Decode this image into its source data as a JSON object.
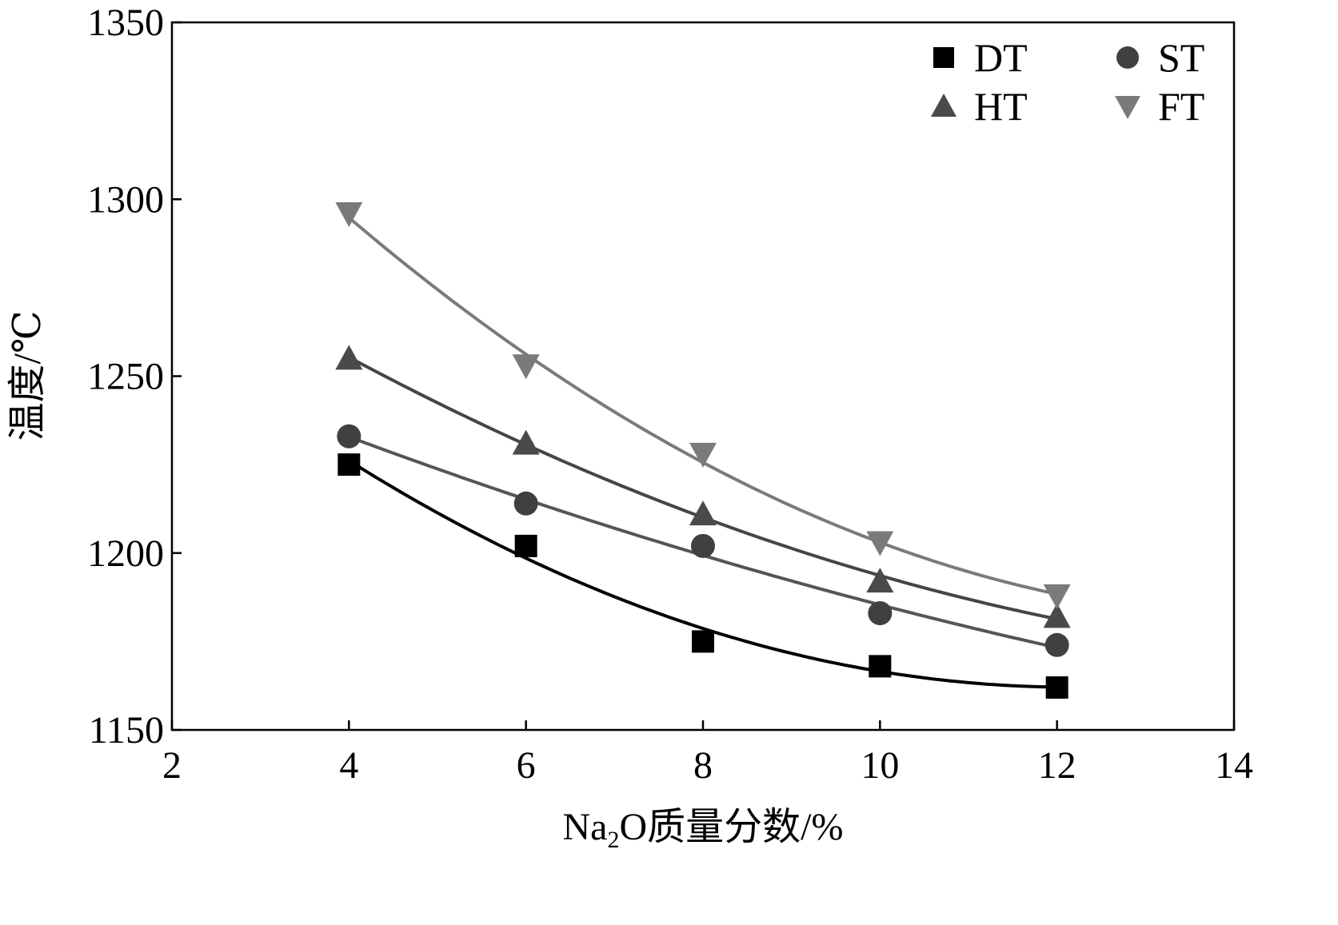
{
  "chart_data": {
    "type": "scatter",
    "title": "",
    "xlabel": {
      "prefix": "Na",
      "sub": "2",
      "suffix": "O质量分数/%"
    },
    "ylabel": "温度/℃",
    "xlim": [
      2,
      14
    ],
    "ylim": [
      1150,
      1350
    ],
    "xticks": [
      2,
      4,
      6,
      8,
      10,
      12,
      14
    ],
    "yticks": [
      1150,
      1200,
      1250,
      1300,
      1350
    ],
    "grid": false,
    "legend_position": "top-right",
    "x": [
      4,
      6,
      8,
      10,
      12
    ],
    "series": [
      {
        "name": "DT",
        "marker": "square",
        "color": "#000000",
        "line_color": "#000000",
        "values": [
          1225,
          1202,
          1175,
          1168,
          1162
        ]
      },
      {
        "name": "ST",
        "marker": "circle",
        "color": "#404040",
        "line_color": "#555555",
        "values": [
          1233,
          1214,
          1202,
          1183,
          1174
        ]
      },
      {
        "name": "HT",
        "marker": "triangle-up",
        "color": "#4a4a4a",
        "line_color": "#454545",
        "values": [
          1255,
          1231,
          1211,
          1192,
          1182
        ]
      },
      {
        "name": "FT",
        "marker": "triangle-down",
        "color": "#7a7a7a",
        "line_color": "#7a7a7a",
        "values": [
          1296,
          1253,
          1228,
          1203,
          1188
        ]
      }
    ]
  }
}
